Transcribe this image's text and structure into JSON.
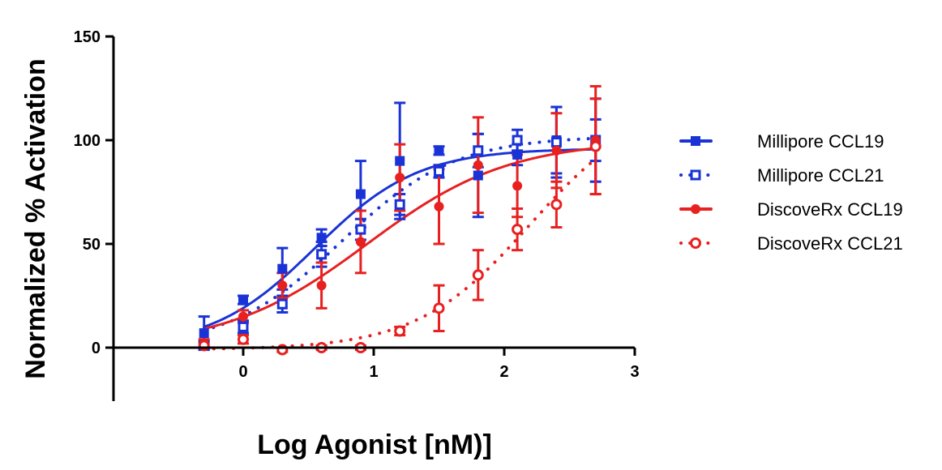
{
  "chart_data": {
    "type": "scatter",
    "title": "",
    "xlabel": "Log Agonist [nM)]",
    "ylabel": "Normalized % Activation",
    "xlim": [
      -1,
      3
    ],
    "ylim": [
      -25,
      150
    ],
    "xticks": [
      0,
      1,
      2,
      3
    ],
    "yticks": [
      0,
      50,
      100,
      150
    ],
    "grid": false,
    "legend_position": "right",
    "series": [
      {
        "name": "Millipore CCL19",
        "color": "#1a33d6",
        "marker": "square-filled",
        "line": "solid",
        "points": [
          {
            "x": -0.3,
            "y": 7,
            "err": 8
          },
          {
            "x": 0,
            "y": 23,
            "err": 2
          },
          {
            "x": 0.3,
            "y": 38,
            "err": 10
          },
          {
            "x": 0.6,
            "y": 53,
            "err": 4
          },
          {
            "x": 0.9,
            "y": 74,
            "err": 16
          },
          {
            "x": 1.2,
            "y": 90,
            "err": 28
          },
          {
            "x": 1.5,
            "y": 95,
            "err": 2
          },
          {
            "x": 1.8,
            "y": 83,
            "err": 20
          },
          {
            "x": 2.1,
            "y": 93,
            "err": 5
          },
          {
            "x": 2.4,
            "y": 100,
            "err": 16
          },
          {
            "x": 2.7,
            "y": 100,
            "err": 20
          }
        ],
        "fit": {
          "bottom": 0,
          "top": 96,
          "logec50": 0.55,
          "hill": 1.1
        }
      },
      {
        "name": "Millipore CCL21",
        "color": "#1a33d6",
        "marker": "square-open",
        "line": "dotted",
        "points": [
          {
            "x": -0.3,
            "y": 1,
            "err": 2
          },
          {
            "x": 0,
            "y": 10,
            "err": 3
          },
          {
            "x": 0.3,
            "y": 21,
            "err": 4
          },
          {
            "x": 0.6,
            "y": 45,
            "err": 6
          },
          {
            "x": 0.9,
            "y": 57,
            "err": 5
          },
          {
            "x": 1.2,
            "y": 69,
            "err": 5
          },
          {
            "x": 1.5,
            "y": 85,
            "err": 3
          },
          {
            "x": 1.8,
            "y": 95,
            "err": 8
          },
          {
            "x": 2.1,
            "y": 100,
            "err": 5
          },
          {
            "x": 2.4,
            "y": 99,
            "err": 17
          },
          {
            "x": 2.7,
            "y": 100,
            "err": 10
          }
        ],
        "fit": {
          "bottom": 0,
          "top": 102,
          "logec50": 0.75,
          "hill": 1.0
        }
      },
      {
        "name": "DiscoveRx CCL19",
        "color": "#e82020",
        "marker": "circle-filled",
        "line": "solid",
        "points": [
          {
            "x": -0.3,
            "y": 2,
            "err": 2
          },
          {
            "x": 0,
            "y": 15,
            "err": 3
          },
          {
            "x": 0.3,
            "y": 30,
            "err": 6
          },
          {
            "x": 0.6,
            "y": 30,
            "err": 11
          },
          {
            "x": 0.9,
            "y": 51,
            "err": 15
          },
          {
            "x": 1.2,
            "y": 82,
            "err": 16
          },
          {
            "x": 1.5,
            "y": 68,
            "err": 18
          },
          {
            "x": 1.8,
            "y": 88,
            "err": 23
          },
          {
            "x": 2.1,
            "y": 78,
            "err": 15
          },
          {
            "x": 2.4,
            "y": 95,
            "err": 18
          },
          {
            "x": 2.7,
            "y": 100,
            "err": 26
          }
        ],
        "fit": {
          "bottom": 0,
          "top": 100,
          "logec50": 0.95,
          "hill": 0.8
        }
      },
      {
        "name": "DiscoveRx CCL21",
        "color": "#e82020",
        "marker": "circle-open",
        "line": "dotted",
        "points": [
          {
            "x": -0.3,
            "y": 1,
            "err": 1
          },
          {
            "x": 0,
            "y": 4,
            "err": 2
          },
          {
            "x": 0.3,
            "y": -1,
            "err": 1
          },
          {
            "x": 0.6,
            "y": 0,
            "err": 1
          },
          {
            "x": 0.9,
            "y": 0,
            "err": 1
          },
          {
            "x": 1.2,
            "y": 8,
            "err": 2
          },
          {
            "x": 1.5,
            "y": 19,
            "err": 11
          },
          {
            "x": 1.8,
            "y": 35,
            "err": 12
          },
          {
            "x": 2.1,
            "y": 57,
            "err": 10
          },
          {
            "x": 2.4,
            "y": 69,
            "err": 11
          },
          {
            "x": 2.7,
            "y": 97,
            "err": 23
          }
        ],
        "fit": {
          "bottom": -1,
          "top": 120,
          "logec50": 2.2,
          "hill": 1.0
        }
      }
    ]
  }
}
